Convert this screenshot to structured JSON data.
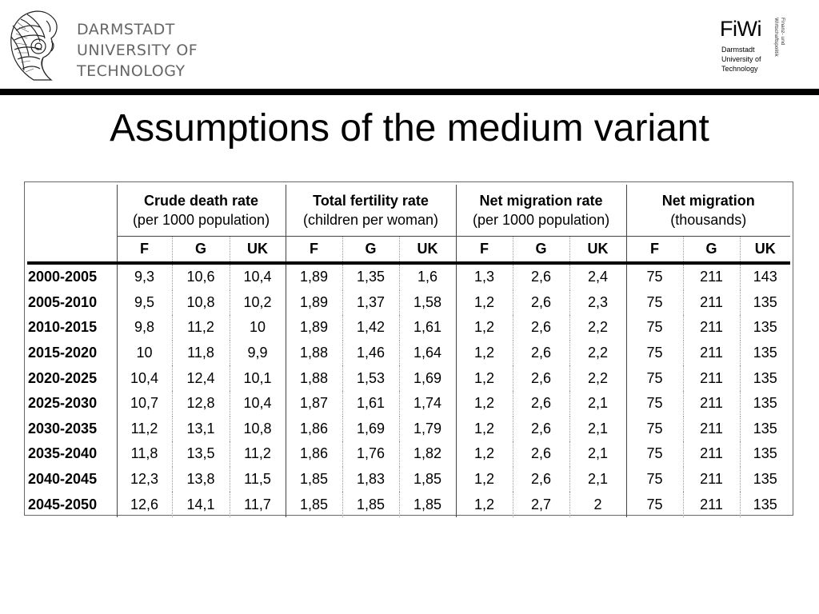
{
  "header": {
    "university_lines": [
      "DARMSTADT",
      "UNIVERSITY OF",
      "TECHNOLOGY"
    ],
    "fiwi": {
      "name": "FiWi",
      "sub_lines": [
        "Darmstadt",
        "University of",
        "Technology"
      ],
      "vertical_lines": [
        "Finanz- und",
        "Wirtschaftspolitik"
      ]
    }
  },
  "title": "Assumptions of the medium variant",
  "table": {
    "groups": [
      {
        "title": "Crude death rate",
        "subtitle": "(per 1000 population)"
      },
      {
        "title": "Total fertility rate",
        "subtitle": "(children per woman)"
      },
      {
        "title": "Net migration rate",
        "subtitle": "(per 1000 population)"
      },
      {
        "title": "Net migration",
        "subtitle": "(thousands)"
      }
    ],
    "countries": [
      "F",
      "G",
      "UK"
    ],
    "rows": [
      {
        "period": "2000-2005",
        "values": [
          "9,3",
          "10,6",
          "10,4",
          "1,89",
          "1,35",
          "1,6",
          "1,3",
          "2,6",
          "2,4",
          "75",
          "211",
          "143"
        ]
      },
      {
        "period": "2005-2010",
        "values": [
          "9,5",
          "10,8",
          "10,2",
          "1,89",
          "1,37",
          "1,58",
          "1,2",
          "2,6",
          "2,3",
          "75",
          "211",
          "135"
        ]
      },
      {
        "period": "2010-2015",
        "values": [
          "9,8",
          "11,2",
          "10",
          "1,89",
          "1,42",
          "1,61",
          "1,2",
          "2,6",
          "2,2",
          "75",
          "211",
          "135"
        ]
      },
      {
        "period": "2015-2020",
        "values": [
          "10",
          "11,8",
          "9,9",
          "1,88",
          "1,46",
          "1,64",
          "1,2",
          "2,6",
          "2,2",
          "75",
          "211",
          "135"
        ]
      },
      {
        "period": "2020-2025",
        "values": [
          "10,4",
          "12,4",
          "10,1",
          "1,88",
          "1,53",
          "1,69",
          "1,2",
          "2,6",
          "2,2",
          "75",
          "211",
          "135"
        ]
      },
      {
        "period": "2025-2030",
        "values": [
          "10,7",
          "12,8",
          "10,4",
          "1,87",
          "1,61",
          "1,74",
          "1,2",
          "2,6",
          "2,1",
          "75",
          "211",
          "135"
        ]
      },
      {
        "period": "2030-2035",
        "values": [
          "11,2",
          "13,1",
          "10,8",
          "1,86",
          "1,69",
          "1,79",
          "1,2",
          "2,6",
          "2,1",
          "75",
          "211",
          "135"
        ]
      },
      {
        "period": "2035-2040",
        "values": [
          "11,8",
          "13,5",
          "11,2",
          "1,86",
          "1,76",
          "1,82",
          "1,2",
          "2,6",
          "2,1",
          "75",
          "211",
          "135"
        ]
      },
      {
        "period": "2040-2045",
        "values": [
          "12,3",
          "13,8",
          "11,5",
          "1,85",
          "1,83",
          "1,85",
          "1,2",
          "2,6",
          "2,1",
          "75",
          "211",
          "135"
        ]
      },
      {
        "period": "2045-2050",
        "values": [
          "12,6",
          "14,1",
          "11,7",
          "1,85",
          "1,85",
          "1,85",
          "1,2",
          "2,7",
          "2",
          "75",
          "211",
          "135"
        ]
      }
    ]
  }
}
